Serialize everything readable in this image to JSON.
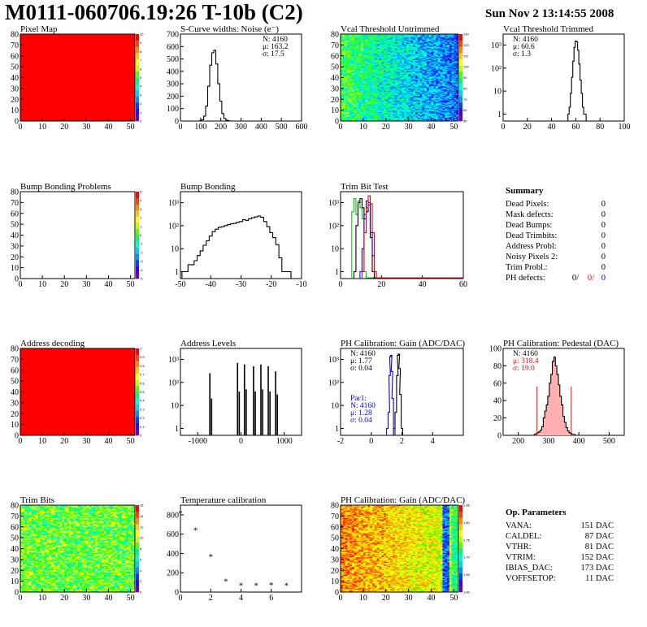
{
  "title": "M0111-060706.19:26 T-10b (C2)",
  "date": "Sun Nov  2 13:14:55 2008",
  "colors": {
    "red": "#ff0000",
    "blue": "#0000ff",
    "green": "#00cc00",
    "black": "#000000",
    "pink": "#ffb0b0"
  },
  "palette": [
    "#6e00c8",
    "#3a00ff",
    "#0040ff",
    "#0090ff",
    "#00d0ff",
    "#00ffd8",
    "#00ff70",
    "#50ff00",
    "#c0ff00",
    "#ffff00",
    "#ffc800",
    "#ff8800",
    "#ff4000",
    "#ff0000"
  ],
  "summary": {
    "heading": "Summary",
    "rows": [
      {
        "label": "Dead Pixels:",
        "value": "0"
      },
      {
        "label": "Mask defects:",
        "value": "0"
      },
      {
        "label": "Dead Bumps:",
        "value": "0"
      },
      {
        "label": "Dead Trimbits:",
        "value": "0"
      },
      {
        "label": "Address Probl:",
        "value": "0"
      },
      {
        "label": "Noisy Pixels 2:",
        "value": "0"
      },
      {
        "label": "Trim Probl.:",
        "value": "0"
      }
    ],
    "ph_label": "PH defects:",
    "ph_values": [
      "0/",
      "0/",
      "0"
    ]
  },
  "params": {
    "heading": "Op. Parameters",
    "rows": [
      {
        "label": "VANA:",
        "value": "151 DAC"
      },
      {
        "label": "CALDEL:",
        "value": "87 DAC"
      },
      {
        "label": "VTHR:",
        "value": "81 DAC"
      },
      {
        "label": "VTRIM:",
        "value": "152 DAC"
      },
      {
        "label": "IBIAS_DAC:",
        "value": "173 DAC"
      },
      {
        "label": "VOFFSETOP:",
        "value": "11 DAC"
      }
    ]
  },
  "chart_data": [
    {
      "id": "pixelmap",
      "type": "heatmap",
      "title": "Pixel Map",
      "xlim": [
        0,
        52
      ],
      "ylim": [
        0,
        80
      ],
      "xticks": [
        "0",
        "10",
        "20",
        "30",
        "40",
        "50"
      ],
      "yticks": [
        "0",
        "10",
        "20",
        "30",
        "40",
        "50",
        "60",
        "70",
        "80"
      ],
      "zticks": [
        "0",
        "1",
        "2",
        "3",
        "4",
        "5",
        "6",
        "7",
        "8",
        "9",
        "10"
      ],
      "fill": "uniform",
      "zvalue": 10
    },
    {
      "id": "scurve",
      "type": "histogram",
      "title": "S-Curve widths: Noise (e⁻)",
      "xlim": [
        0,
        600
      ],
      "ylim": [
        0,
        700
      ],
      "xticks": [
        "0",
        "100",
        "200",
        "300",
        "400",
        "500",
        "600"
      ],
      "yticks": [
        "0",
        "100",
        "200",
        "300",
        "400",
        "500",
        "600",
        "700"
      ],
      "stats": [
        "N: 4160",
        "μ: 163.2",
        "σ: 17.5"
      ],
      "series": [
        {
          "x": [
            90,
            100,
            110,
            120,
            130,
            140,
            150,
            160,
            170,
            180,
            190,
            200,
            210,
            220,
            230,
            240,
            250
          ],
          "values": [
            0,
            2,
            10,
            40,
            120,
            280,
            450,
            550,
            570,
            460,
            300,
            160,
            60,
            20,
            6,
            2,
            0
          ]
        }
      ]
    },
    {
      "id": "vcal_untrimmed",
      "type": "heatmap",
      "title": "Vcal Threshold Untrimmed",
      "xlim": [
        0,
        52
      ],
      "ylim": [
        0,
        80
      ],
      "xticks": [
        "0",
        "10",
        "20",
        "30",
        "40",
        "50"
      ],
      "yticks": [
        "0",
        "10",
        "20",
        "30",
        "40",
        "50",
        "60",
        "70",
        "80"
      ],
      "zticks": [
        "50",
        "60",
        "70",
        "80",
        "90",
        "100",
        "110",
        "120",
        "130"
      ],
      "fill": "gradient-green-to-blue"
    },
    {
      "id": "vcal_trimmed",
      "type": "histogram",
      "title": "Vcal Threshold Trimmed",
      "xlim": [
        0,
        100
      ],
      "log": true,
      "xticks": [
        "0",
        "20",
        "40",
        "60",
        "80",
        "100"
      ],
      "yticks": [
        "1",
        "10",
        "10²",
        "10³"
      ],
      "stats": [
        "N: 4160",
        "μ: 60.6",
        "σ:  1.3"
      ],
      "series": [
        {
          "x": [
            54,
            55,
            56,
            57,
            58,
            59,
            60,
            61,
            62,
            63,
            64,
            65,
            66,
            67,
            68
          ],
          "values": [
            1,
            2,
            8,
            40,
            200,
            800,
            1500,
            1400,
            600,
            150,
            30,
            8,
            2,
            1,
            1
          ]
        }
      ]
    },
    {
      "id": "bump_problems",
      "type": "heatmap",
      "title": "Bump Bonding Problems",
      "xlim": [
        0,
        52
      ],
      "ylim": [
        0,
        80
      ],
      "xticks": [
        "0",
        "10",
        "20",
        "30",
        "40",
        "50"
      ],
      "yticks": [
        "0",
        "10",
        "20",
        "30",
        "40",
        "50",
        "60",
        "70",
        "80"
      ],
      "zticks": [
        "-5",
        "-4",
        "-3",
        "-2",
        "-1",
        "0",
        "1",
        "2",
        "3",
        "4",
        "5"
      ],
      "fill": "empty"
    },
    {
      "id": "bump_bonding",
      "type": "histogram",
      "title": "Bump Bonding",
      "xlim": [
        -50,
        -10
      ],
      "log": true,
      "xticks": [
        "-50",
        "-40",
        "-30",
        "-20",
        "-10"
      ],
      "yticks": [
        "1",
        "10",
        "10²",
        "10³"
      ],
      "series": [
        {
          "x": [
            -49,
            -48,
            -47,
            -46,
            -45,
            -44,
            -43,
            -42,
            -41,
            -40,
            -39,
            -38,
            -37,
            -36,
            -35,
            -34,
            -33,
            -32,
            -31,
            -30,
            -29,
            -28,
            -27,
            -26,
            -25,
            -24,
            -23,
            -22,
            -21,
            -20,
            -19,
            -18,
            -17,
            -16,
            -15,
            -14
          ],
          "values": [
            1,
            1,
            2,
            2,
            3,
            5,
            8,
            14,
            22,
            35,
            55,
            70,
            85,
            90,
            100,
            110,
            120,
            125,
            140,
            150,
            180,
            170,
            200,
            220,
            240,
            260,
            230,
            150,
            90,
            50,
            30,
            15,
            4,
            1,
            1,
            1
          ]
        }
      ]
    },
    {
      "id": "trimbit",
      "type": "line",
      "title": "Trim Bit Test",
      "xlim": [
        0,
        60
      ],
      "log": true,
      "xticks": [
        "0",
        "20",
        "40",
        "60"
      ],
      "yticks": [
        "1",
        "10",
        "10²",
        "10³"
      ],
      "series": [
        {
          "color": "green",
          "x": [
            6,
            7,
            8,
            9,
            10,
            11,
            12
          ],
          "values": [
            400,
            1500,
            300,
            1200,
            600,
            200,
            1
          ]
        },
        {
          "color": "black",
          "x": [
            7,
            8,
            9,
            10,
            11,
            12,
            13,
            14,
            15,
            16
          ],
          "values": [
            1,
            100,
            1000,
            1500,
            600,
            200,
            400,
            1000,
            30,
            1
          ]
        },
        {
          "color": "blue",
          "x": [
            10,
            11,
            12,
            13,
            14,
            15,
            16,
            17
          ],
          "values": [
            1,
            10,
            300,
            1200,
            800,
            50,
            5,
            1
          ]
        },
        {
          "color": "red",
          "x": [
            11,
            12,
            13,
            14,
            15,
            16,
            17
          ],
          "values": [
            1,
            50,
            600,
            2000,
            900,
            50,
            1
          ]
        }
      ]
    },
    {
      "id": "addr_decoding",
      "type": "heatmap",
      "title": "Address decoding",
      "xlim": [
        0,
        52
      ],
      "ylim": [
        0,
        80
      ],
      "xticks": [
        "0",
        "10",
        "20",
        "30",
        "40",
        "50"
      ],
      "yticks": [
        "0",
        "10",
        "20",
        "30",
        "40",
        "50",
        "60",
        "70",
        "80"
      ],
      "zticks": [
        "0",
        "0.1",
        "0.2",
        "0.3",
        "0.4",
        "0.5",
        "0.6",
        "0.7",
        "0.8",
        "0.9",
        "1"
      ],
      "fill": "uniform",
      "zvalue": 1
    },
    {
      "id": "addr_levels",
      "type": "bar",
      "title": "Address Levels",
      "xlim": [
        -1400,
        1400
      ],
      "log": true,
      "xticks": [
        "-1000",
        "0",
        "1000"
      ],
      "yticks": [
        "1",
        "10",
        "10²",
        "10³"
      ],
      "x": [
        -720,
        -680,
        -80,
        -40,
        80,
        120,
        290,
        330,
        460,
        500,
        630,
        670,
        800,
        840
      ],
      "values": [
        250,
        20,
        700,
        40,
        600,
        50,
        500,
        40,
        600,
        50,
        500,
        40,
        300,
        30
      ]
    },
    {
      "id": "ph_gain",
      "type": "histogram",
      "title": "PH Calibration: Gain (ADC/DAC)",
      "xlim": [
        -2,
        6
      ],
      "log": true,
      "xticks": [
        "-2",
        "0",
        "2",
        "4"
      ],
      "yticks": [
        "1",
        "10",
        "10²",
        "10³"
      ],
      "stats": [
        "N: 4160",
        "μ: 1.77",
        "σ: 0.04"
      ],
      "stats2": [
        "Par1:",
        "N: 4160",
        "μ: 1.28",
        "σ: 0.04"
      ],
      "series": [
        {
          "color": "black",
          "x": [
            1.5,
            1.6,
            1.7,
            1.75,
            1.8,
            1.85,
            1.9,
            2.0
          ],
          "values": [
            1,
            5,
            200,
            1500,
            1700,
            400,
            30,
            1
          ]
        },
        {
          "color": "blue",
          "x": [
            1.05,
            1.15,
            1.2,
            1.25,
            1.3,
            1.35,
            1.4,
            1.5
          ],
          "values": [
            1,
            5,
            200,
            1300,
            1500,
            300,
            20,
            1
          ]
        }
      ]
    },
    {
      "id": "ph_pedestal",
      "type": "histogram",
      "title": "PH Calibration: Pedestal (DAC)",
      "xlim": [
        150,
        550
      ],
      "ylim": [
        0,
        100
      ],
      "xticks": [
        "200",
        "300",
        "400",
        "500"
      ],
      "yticks": [
        "0",
        "20",
        "40",
        "60",
        "80",
        "100"
      ],
      "stats": [
        "N: 4160",
        "μ: 318.4",
        "σ: 19.0"
      ],
      "series": [
        {
          "x": [
            255,
            260,
            265,
            270,
            275,
            280,
            285,
            290,
            295,
            300,
            305,
            310,
            315,
            320,
            325,
            330,
            335,
            340,
            345,
            350,
            355,
            360,
            365,
            370,
            375,
            380,
            385
          ],
          "values": [
            1,
            2,
            3,
            4,
            6,
            10,
            20,
            28,
            35,
            45,
            60,
            70,
            85,
            90,
            80,
            70,
            58,
            45,
            35,
            22,
            15,
            9,
            5,
            3,
            2,
            1,
            1
          ]
        }
      ],
      "markers": [
        262,
        375
      ]
    },
    {
      "id": "trimbits_map",
      "type": "heatmap",
      "title": "Trim Bits",
      "xlim": [
        0,
        52
      ],
      "ylim": [
        0,
        80
      ],
      "xticks": [
        "0",
        "10",
        "20",
        "30",
        "40",
        "50"
      ],
      "yticks": [
        "0",
        "10",
        "20",
        "30",
        "40",
        "50",
        "60",
        "70",
        "80"
      ],
      "zticks": [
        "0",
        "2",
        "4",
        "6",
        "8",
        "10",
        "12",
        "14",
        "16"
      ],
      "fill": "noisy-green"
    },
    {
      "id": "temperature",
      "type": "scatter",
      "title": "Temperature calibration",
      "xlim": [
        0,
        8
      ],
      "ylim": [
        0,
        900
      ],
      "xticks": [
        "0",
        "2",
        "4",
        "6"
      ],
      "yticks": [
        "0",
        "200",
        "400",
        "600",
        "800"
      ],
      "x": [
        0,
        1,
        2,
        3,
        4,
        5,
        6,
        7
      ],
      "values": [
        830,
        650,
        380,
        120,
        80,
        80,
        85,
        80
      ]
    },
    {
      "id": "ph_gain_map",
      "type": "heatmap",
      "title": "PH Calibration: Gain (ADC/DAC)",
      "xlim": [
        0,
        52
      ],
      "ylim": [
        0,
        80
      ],
      "xticks": [
        "0",
        "10",
        "20",
        "30",
        "40",
        "50"
      ],
      "yticks": [
        "0",
        "10",
        "20",
        "30",
        "40",
        "50",
        "60",
        "70",
        "80"
      ],
      "zticks": [
        "1.60",
        "1.65",
        "1.70",
        "1.75",
        "1.80",
        "1.85"
      ],
      "fill": "noisy-red"
    }
  ]
}
